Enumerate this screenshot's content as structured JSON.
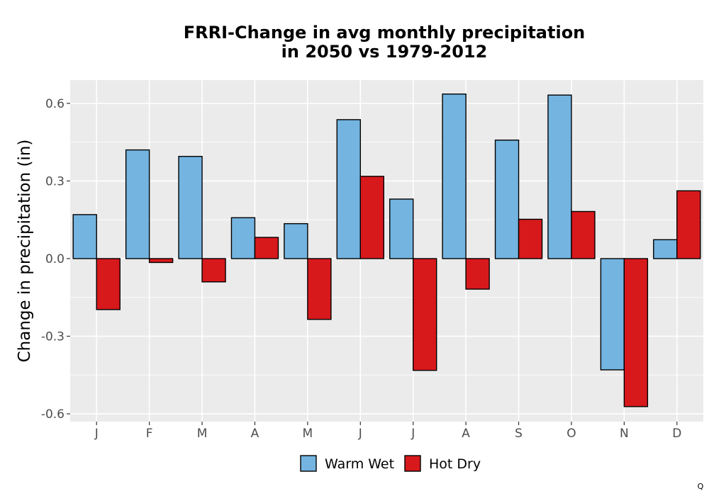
{
  "chart_data": {
    "type": "bar",
    "title_lines": [
      "FRRI-Change in avg monthly precipitation",
      "in 2050 vs 1979-2012"
    ],
    "xlabel": "",
    "ylabel": "Change in precipitation (in)",
    "categories": [
      "J",
      "F",
      "M",
      "A",
      "M",
      "J",
      "J",
      "A",
      "S",
      "O",
      "N",
      "D"
    ],
    "series": [
      {
        "name": "Warm Wet",
        "color": "#74b4e0",
        "values": [
          0.17,
          0.42,
          0.395,
          0.158,
          0.135,
          0.537,
          0.23,
          0.636,
          0.458,
          0.632,
          -0.43,
          0.073
        ]
      },
      {
        "name": "Hot Dry",
        "color": "#d7191c",
        "values": [
          -0.197,
          -0.015,
          -0.09,
          0.082,
          -0.235,
          0.318,
          -0.432,
          -0.118,
          0.152,
          0.182,
          -0.572,
          0.262
        ]
      }
    ],
    "ylim": [
      -0.63,
      0.69
    ],
    "yticks": [
      -0.6,
      -0.3,
      0.0,
      0.3,
      0.6
    ],
    "ytick_labels": [
      "-0.6",
      "-0.3",
      "0.0",
      "0.3",
      "0.6"
    ],
    "grid": true,
    "legend_position": "bottom",
    "panel_background": "#ebebeb",
    "bar_outline": "#000000"
  },
  "corner_mark": "Q"
}
